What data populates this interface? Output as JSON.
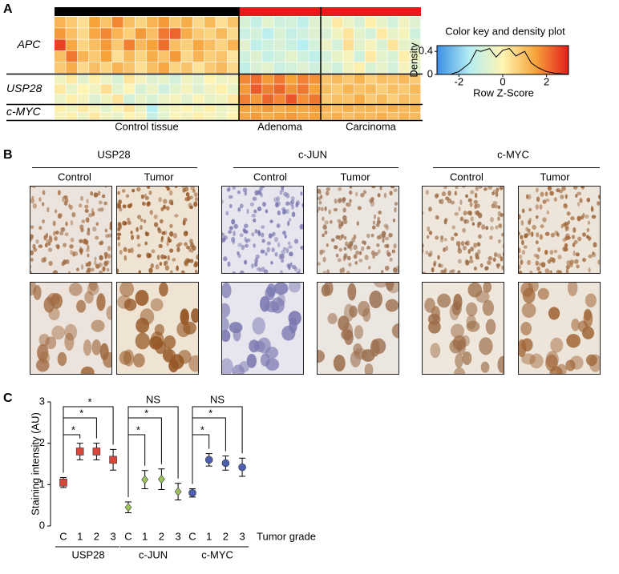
{
  "panel_labels": [
    "A",
    "B",
    "C"
  ],
  "histology": {
    "stains": [
      "USP28",
      "c-JUN",
      "c-MYC"
    ],
    "columns": [
      "Control",
      "Tumor"
    ]
  },
  "chart_data": [
    {
      "type": "heatmap",
      "zlim": [
        -3,
        3
      ],
      "colors": [
        "#3a8fe6",
        "#b6eef2",
        "#fff4b2",
        "#f6a33a",
        "#e41e1c"
      ],
      "groups": [
        {
          "name": "Control tissue",
          "color": "#000000"
        },
        {
          "name": "Adenoma",
          "color": "#e8191b"
        },
        {
          "name": "Carcinoma",
          "color": "#e8191b"
        }
      ],
      "series": [
        {
          "name": "APC",
          "values": [
            [
              [
                1.2,
                0.8,
                0.4,
                1.5,
                0.9,
                1.8,
                1.0,
                0.6,
                1.2,
                1.6,
                0.8,
                1.3,
                0.5,
                1.1,
                0.4,
                0.9
              ],
              [
                -0.8,
                -1.2,
                -0.6,
                -1.0,
                -0.9,
                -1.3,
                -0.7
              ],
              [
                -0.6,
                0.2,
                -0.4,
                -0.8,
                0.1,
                -0.5,
                -0.9,
                -0.3,
                -0.7
              ]
            ],
            [
              [
                1.6,
                1.0,
                0.5,
                1.4,
                1.8,
                1.2,
                0.7,
                1.6,
                1.0,
                2.0,
                2.2,
                1.3,
                0.8,
                0.6,
                1.1,
                0.5
              ],
              [
                -1.1,
                -0.9,
                -1.4,
                -0.8,
                -1.2,
                -1.0,
                -0.7
              ],
              [
                -0.8,
                -0.3,
                0.3,
                -0.6,
                -0.9,
                0.2,
                -0.5,
                -0.2,
                -1.0
              ]
            ],
            [
              [
                2.6,
                1.4,
                0.6,
                1.0,
                1.6,
                0.8,
                1.9,
                1.1,
                1.5,
                2.1,
                1.0,
                0.7,
                1.4,
                1.0,
                0.6,
                1.2
              ],
              [
                -0.6,
                -1.3,
                -1.0,
                -0.8,
                -1.1,
                -1.5,
                -0.9
              ],
              [
                -0.4,
                -0.9,
                0.4,
                -0.6,
                -0.2,
                -0.8,
                0.3,
                -0.5,
                -0.7
              ]
            ],
            [
              [
                1.0,
                2.0,
                1.2,
                0.8,
                1.5,
                0.4,
                1.1,
                0.6,
                1.3,
                0.9,
                1.6,
                0.5,
                1.2,
                0.7,
                0.9,
                0.3
              ],
              [
                -1.0,
                -0.7,
                -1.2,
                -0.9,
                -0.6,
                -1.0,
                -1.3
              ],
              [
                -0.9,
                -0.5,
                -0.2,
                -1.0,
                0.2,
                -0.6,
                -0.8,
                0.1,
                -0.4
              ]
            ],
            [
              [
                0.8,
                1.3,
                0.5,
                1.0,
                0.6,
                1.2,
                0.9,
                0.4,
                1.0,
                1.4,
                0.6,
                0.9,
                0.3,
                0.8,
                1.1,
                0.5
              ],
              [
                -1.3,
                -0.8,
                -0.6,
                -1.1,
                -0.9,
                -0.7,
                -1.0
              ],
              [
                -0.7,
                -1.0,
                -0.3,
                0.1,
                -0.8,
                -0.5,
                -0.9,
                -0.2,
                -0.6
              ]
            ]
          ]
        },
        {
          "name": "USP28",
          "values": [
            [
              [
                -0.3,
                0.2,
                -0.6,
                0.1,
                -0.4,
                -0.8,
                0.3,
                -0.2,
                -0.7,
                -0.5,
                -0.9,
                -0.3,
                -0.6,
                0.0,
                -0.4,
                -0.2
              ],
              [
                1.8,
                2.1,
                1.6,
                2.0,
                1.5,
                1.9,
                1.7
              ],
              [
                0.9,
                1.1,
                0.8,
                1.2,
                0.7,
                1.0,
                0.9,
                1.1,
                0.8
              ]
            ],
            [
              [
                0.2,
                -0.5,
                0.0,
                -0.3,
                0.4,
                -0.6,
                -0.1,
                -0.8,
                -0.4,
                -1.0,
                -0.6,
                -0.2,
                -0.7,
                -0.3,
                0.1,
                -0.5
              ],
              [
                1.6,
                2.3,
                1.9,
                2.2,
                1.7,
                2.0,
                1.5
              ],
              [
                1.0,
                0.8,
                1.2,
                0.9,
                1.1,
                0.7,
                1.0,
                0.8,
                1.1
              ]
            ],
            [
              [
                -0.4,
                0.1,
                -0.2,
                -0.7,
                -0.3,
                0.3,
                -0.9,
                -0.5,
                -0.8,
                -0.4,
                -0.2,
                -0.6,
                -0.1,
                -0.5,
                -0.3,
                0.2
              ],
              [
                1.9,
                1.6,
                2.2,
                1.8,
                2.4,
                1.7,
                2.0
              ],
              [
                0.8,
                1.0,
                0.9,
                1.3,
                0.8,
                1.1,
                0.7,
                1.0,
                0.9
              ]
            ]
          ]
        },
        {
          "name": "c-MYC",
          "values": [
            [
              [
                0.1,
                -0.3,
                0.2,
                -0.2,
                -0.6,
                -0.1,
                0.3,
                -0.4,
                -1.5,
                -0.5,
                -0.2,
                0.0,
                -0.3,
                0.1,
                -0.4,
                -0.2
              ],
              [
                1.5,
                1.4,
                1.6,
                1.3,
                1.5,
                1.4,
                1.6
              ],
              [
                1.2,
                1.0,
                1.3,
                1.1,
                1.2,
                1.0,
                1.3,
                1.1,
                1.2
              ]
            ],
            [
              [
                -0.2,
                0.1,
                -0.4,
                0.2,
                -0.3,
                -0.5,
                0.0,
                -0.2,
                -1.2,
                -0.6,
                -0.1,
                -0.3,
                0.1,
                -0.2,
                -0.4,
                0.0
              ],
              [
                1.4,
                1.6,
                1.3,
                1.5,
                1.6,
                1.4,
                1.5
              ],
              [
                1.1,
                1.3,
                1.0,
                1.2,
                1.1,
                1.3,
                1.0,
                1.2,
                1.1
              ]
            ]
          ]
        }
      ]
    },
    {
      "type": "line",
      "title": "Color key and density plot",
      "xlabel": "Row Z-Score",
      "ylabel": "Density",
      "x": [
        -2.4,
        -2,
        -1.5,
        -1.2,
        -1,
        -0.6,
        -0.3,
        0,
        0.3,
        0.6,
        1,
        1.3,
        1.6,
        2,
        2.4,
        3
      ],
      "values": [
        0,
        0.05,
        0.2,
        0.42,
        0.4,
        0.45,
        0.3,
        0.42,
        0.45,
        0.32,
        0.4,
        0.2,
        0.12,
        0.05,
        0.02,
        0
      ],
      "xlim": [
        -3,
        3
      ],
      "ylim": [
        0,
        0.5
      ],
      "xticks": [
        -2,
        0,
        2
      ],
      "yticks": [
        0,
        0.4
      ],
      "color": "#000000"
    },
    {
      "type": "errorbar",
      "ylabel": "Staining intensity (AU)",
      "xlabel": "Tumor grade",
      "categories": [
        "C",
        "1",
        "2",
        "3"
      ],
      "ylim": [
        0,
        3
      ],
      "yticks": [
        0,
        1,
        2,
        3
      ],
      "series": [
        {
          "name": "USP28",
          "color": "#d8463a",
          "marker": "square",
          "values": [
            1.05,
            1.8,
            1.8,
            1.6
          ],
          "errors": [
            0.12,
            0.2,
            0.2,
            0.25
          ],
          "significance": [
            null,
            "*",
            "*",
            "*"
          ]
        },
        {
          "name": "c-JUN",
          "color": "#9cc45a",
          "marker": "diamond",
          "values": [
            0.45,
            1.12,
            1.13,
            0.83
          ],
          "errors": [
            0.13,
            0.22,
            0.25,
            0.2
          ],
          "significance": [
            null,
            "*",
            "*",
            "NS"
          ]
        },
        {
          "name": "c-MYC",
          "color": "#4d5fb0",
          "marker": "circle",
          "values": [
            0.8,
            1.6,
            1.52,
            1.42
          ],
          "errors": [
            0.1,
            0.15,
            0.17,
            0.22
          ],
          "significance": [
            null,
            "*",
            "*",
            "NS"
          ]
        }
      ]
    }
  ]
}
